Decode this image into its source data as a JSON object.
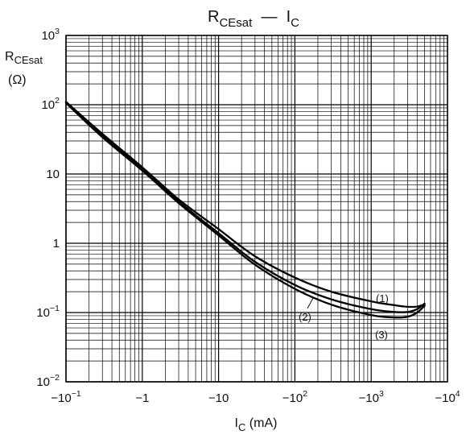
{
  "chart_data": {
    "type": "line",
    "title": {
      "main": "R",
      "main_sub": "CEsat",
      "dash": "—",
      "var": "I",
      "var_sub": "C"
    },
    "ylabel": {
      "main": "R",
      "sub": "CEsat",
      "unit": "(Ω)"
    },
    "xlabel": {
      "main": "I",
      "sub": "C",
      "unit": " (mA)"
    },
    "x_scale": "log",
    "y_scale": "log",
    "x_sign_negative": true,
    "xlim": [
      0.1,
      10000
    ],
    "ylim": [
      0.01,
      1000
    ],
    "grid": true,
    "x_ticks": [
      {
        "value": 0.1,
        "base": "−10",
        "exp": "−1"
      },
      {
        "value": 1,
        "base": "−1",
        "exp": ""
      },
      {
        "value": 10,
        "base": "−10",
        "exp": ""
      },
      {
        "value": 100,
        "base": "−10",
        "exp": "2"
      },
      {
        "value": 1000,
        "base": "−10",
        "exp": "3"
      },
      {
        "value": 10000,
        "base": "−10",
        "exp": "4"
      }
    ],
    "y_ticks": [
      {
        "value": 0.01,
        "base": "10",
        "exp": "−2"
      },
      {
        "value": 0.1,
        "base": "10",
        "exp": "−1"
      },
      {
        "value": 1,
        "base": "1",
        "exp": ""
      },
      {
        "value": 10,
        "base": "10",
        "exp": ""
      },
      {
        "value": 100,
        "base": "10",
        "exp": "2"
      },
      {
        "value": 1000,
        "base": "10",
        "exp": "3"
      }
    ],
    "series": [
      {
        "name": "(1)",
        "x": [
          0.1,
          0.3,
          1,
          3,
          10,
          30,
          100,
          300,
          1000,
          2000,
          3000,
          4000,
          5000
        ],
        "y": [
          110,
          38,
          12.5,
          4.3,
          1.6,
          0.65,
          0.32,
          0.2,
          0.145,
          0.128,
          0.121,
          0.122,
          0.13
        ]
      },
      {
        "name": "(2)",
        "x": [
          0.1,
          0.3,
          1,
          3,
          10,
          30,
          100,
          300,
          1000,
          2000,
          3000,
          4000,
          5000
        ],
        "y": [
          108,
          36,
          11.8,
          4.0,
          1.4,
          0.54,
          0.25,
          0.155,
          0.112,
          0.102,
          0.102,
          0.112,
          0.135
        ]
      },
      {
        "name": "(3)",
        "x": [
          0.1,
          0.3,
          1,
          3,
          10,
          30,
          100,
          300,
          1000,
          2000,
          3000,
          4000,
          5000
        ],
        "y": [
          106,
          34,
          11.2,
          3.8,
          1.3,
          0.49,
          0.22,
          0.13,
          0.092,
          0.085,
          0.087,
          0.1,
          0.125
        ]
      }
    ]
  }
}
